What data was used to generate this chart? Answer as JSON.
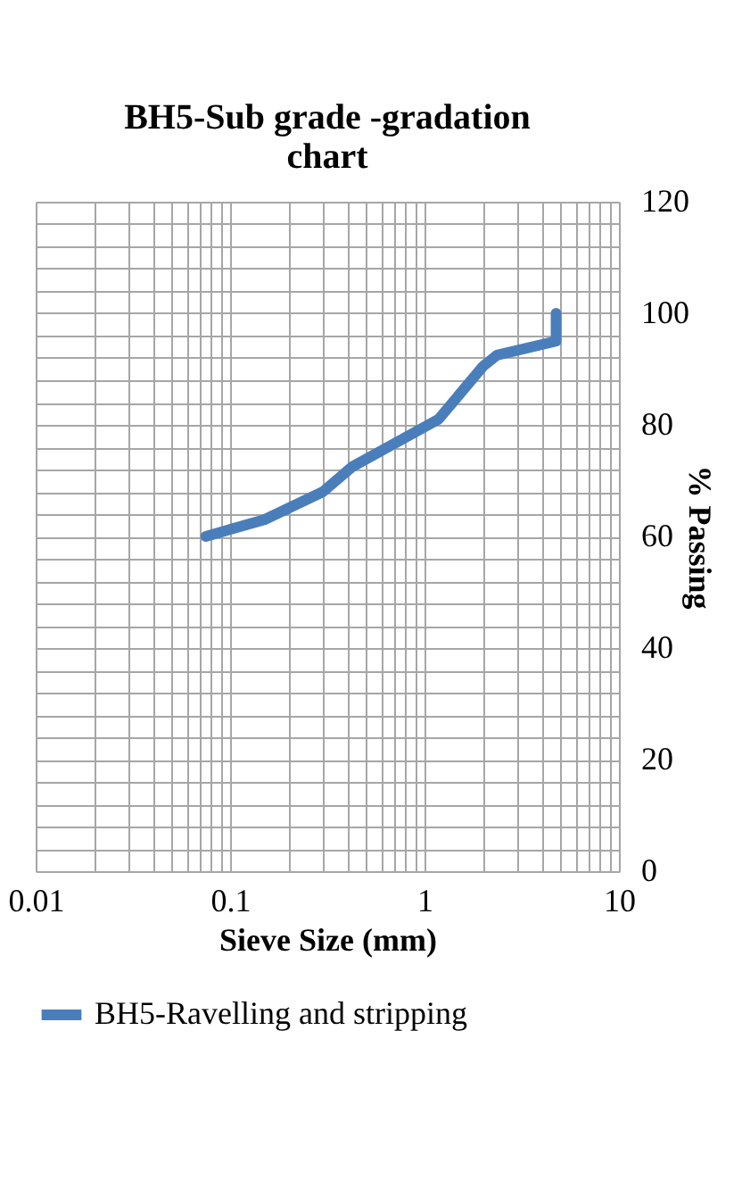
{
  "chart_data": {
    "type": "line",
    "title": "BH5-Sub grade -gradation chart",
    "xlabel": "Sieve Size (mm)",
    "ylabel": "% Passing",
    "series": [
      {
        "name": "BH5-Ravelling and stripping",
        "color": "#4a7ebb",
        "x": [
          0.075,
          0.15,
          0.3,
          0.425,
          1.18,
          2.0,
          2.36,
          4.75,
          4.75
        ],
        "values": [
          60,
          63,
          68,
          72.5,
          81,
          90.5,
          92.5,
          95,
          100
        ]
      }
    ],
    "log": "x",
    "xlim": [
      0.01,
      10
    ],
    "ylim": [
      0,
      120
    ],
    "xticks": [
      0.01,
      {
        "value": 0.02,
        "label": null
      },
      {
        "value": 0.03,
        "label": null
      },
      {
        "value": 0.04,
        "label": null
      },
      {
        "value": 0.05,
        "label": null
      },
      {
        "value": 0.06,
        "label": null
      },
      {
        "value": 0.07,
        "label": null
      },
      {
        "value": 0.08,
        "label": null
      },
      {
        "value": 0.09,
        "label": null
      },
      0.1,
      {
        "value": 0.2,
        "label": null
      },
      {
        "value": 0.3,
        "label": null
      },
      {
        "value": 0.4,
        "label": null
      },
      {
        "value": 0.5,
        "label": null
      },
      {
        "value": 0.6,
        "label": null
      },
      {
        "value": 0.7,
        "label": null
      },
      {
        "value": 0.8,
        "label": null
      },
      {
        "value": 0.9,
        "label": null
      },
      1,
      {
        "value": 2,
        "label": null
      },
      {
        "value": 3,
        "label": null
      },
      {
        "value": 4,
        "label": null
      },
      {
        "value": 5,
        "label": null
      },
      {
        "value": 6,
        "label": null
      },
      {
        "value": 7,
        "label": null
      },
      {
        "value": 8,
        "label": null
      },
      {
        "value": 9,
        "label": null
      },
      10
    ],
    "yticks": [
      0,
      {
        "value": 4,
        "label": null
      },
      {
        "value": 8,
        "label": null
      },
      {
        "value": 12,
        "label": null
      },
      {
        "value": 16,
        "label": null
      },
      20,
      {
        "value": 24,
        "label": null
      },
      {
        "value": 28,
        "label": null
      },
      {
        "value": 32,
        "label": null
      },
      {
        "value": 36,
        "label": null
      },
      40,
      {
        "value": 44,
        "label": null
      },
      {
        "value": 48,
        "label": null
      },
      {
        "value": 52,
        "label": null
      },
      {
        "value": 56,
        "label": null
      },
      60,
      {
        "value": 64,
        "label": null
      },
      {
        "value": 68,
        "label": null
      },
      {
        "value": 72,
        "label": null
      },
      {
        "value": 76,
        "label": null
      },
      80,
      {
        "value": 84,
        "label": null
      },
      {
        "value": 88,
        "label": null
      },
      {
        "value": 92,
        "label": null
      },
      {
        "value": 96,
        "label": null
      },
      100,
      {
        "value": 104,
        "label": null
      },
      {
        "value": 108,
        "label": null
      },
      {
        "value": 112,
        "label": null
      },
      {
        "value": 116,
        "label": null
      },
      120
    ],
    "grid": true,
    "legend": "bottom",
    "marker": "none",
    "line_style": "solid"
  }
}
